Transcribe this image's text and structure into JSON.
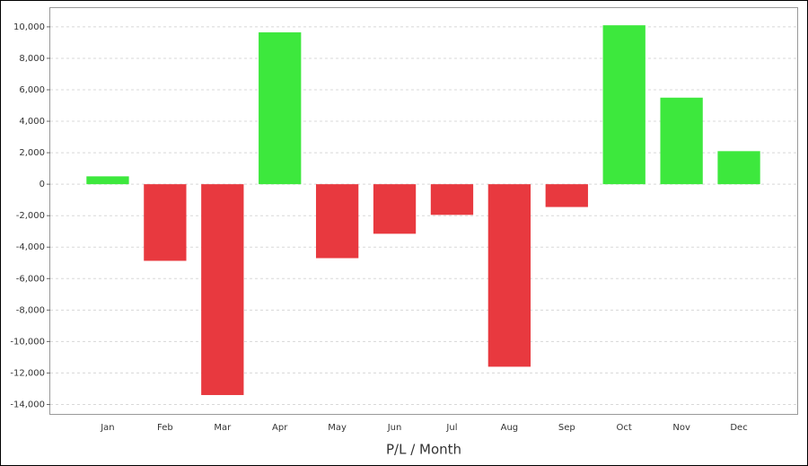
{
  "chart_data": {
    "type": "bar",
    "x_label": "P/L / Month",
    "categories": [
      "Jan",
      "Feb",
      "Mar",
      "Apr",
      "May",
      "Jun",
      "Jul",
      "Aug",
      "Sep",
      "Oct",
      "Nov",
      "Dec"
    ],
    "values": [
      500,
      -4870,
      -13400,
      9650,
      -4700,
      -3150,
      -1950,
      -11600,
      -1450,
      10100,
      5500,
      2100
    ],
    "positive_color": "#3de83d",
    "negative_color": "#e8393f",
    "ylim": [
      -14600,
      11250
    ],
    "yticks": [
      {
        "value": -14000,
        "label": "-14,000"
      },
      {
        "value": -12000,
        "label": "-12,000"
      },
      {
        "value": -10000,
        "label": "-10,000"
      },
      {
        "value": -8000,
        "label": "-8,000"
      },
      {
        "value": -6000,
        "label": "-6,000"
      },
      {
        "value": -4000,
        "label": "-4,000"
      },
      {
        "value": -2000,
        "label": "-2,000"
      },
      0,
      {
        "value": 2000,
        "label": "2,000"
      },
      {
        "value": 4000,
        "label": "4,000"
      },
      {
        "value": 6000,
        "label": "6,000"
      },
      {
        "value": 8000,
        "label": "8,000"
      },
      {
        "value": 10000,
        "label": "10,000"
      }
    ],
    "grid": true
  }
}
